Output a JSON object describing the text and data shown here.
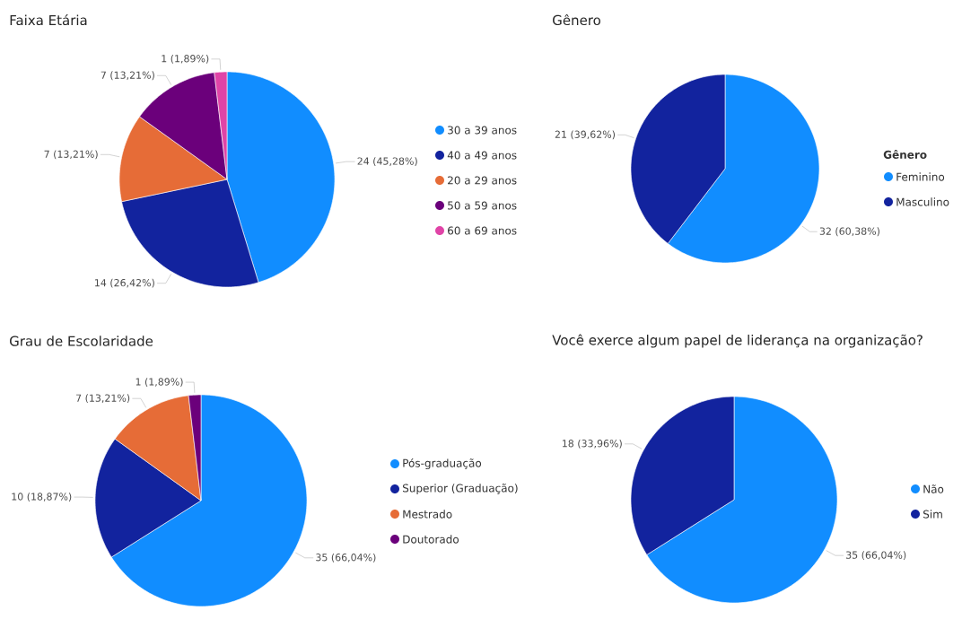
{
  "chart_data": [
    {
      "type": "pie",
      "title": "Faixa Etária",
      "categories": [
        "30 a 39 anos",
        "40 a 49 anos",
        "20 a 29 anos",
        "50 a 59 anos",
        "60 a 69 anos"
      ],
      "values": [
        24,
        14,
        7,
        7,
        1
      ],
      "colors": [
        "#118dff",
        "#12239e",
        "#e66c37",
        "#6b007b",
        "#e044a7"
      ],
      "value_labels": [
        "24 (45,28%)",
        "14 (26,42%)",
        "7 (13,21%)",
        "7 (13,21%)",
        "1 (1,89%)"
      ],
      "legend": "right"
    },
    {
      "type": "pie",
      "title": "Gênero",
      "legend_title": "Gênero",
      "categories": [
        "Feminino",
        "Masculino"
      ],
      "values": [
        32,
        21
      ],
      "colors": [
        "#118dff",
        "#12239e"
      ],
      "value_labels": [
        "32 (60,38%)",
        "21 (39,62%)"
      ],
      "legend": "right"
    },
    {
      "type": "pie",
      "title": "Grau de Escolaridade",
      "categories": [
        "Pós-graduação",
        "Superior (Graduação)",
        "Mestrado",
        "Doutorado"
      ],
      "values": [
        35,
        10,
        7,
        1
      ],
      "colors": [
        "#118dff",
        "#12239e",
        "#e66c37",
        "#6b007b"
      ],
      "value_labels": [
        "35 (66,04%)",
        "10 (18,87%)",
        "7 (13,21%)",
        "1 (1,89%)"
      ],
      "legend": "right"
    },
    {
      "type": "pie",
      "title": "Você exerce algum papel de liderança na organização?",
      "categories": [
        "Não",
        "Sim"
      ],
      "values": [
        35,
        18
      ],
      "colors": [
        "#118dff",
        "#12239e"
      ],
      "value_labels": [
        "35 (66,04%)",
        "18 (33,96%)"
      ],
      "legend": "right"
    }
  ]
}
